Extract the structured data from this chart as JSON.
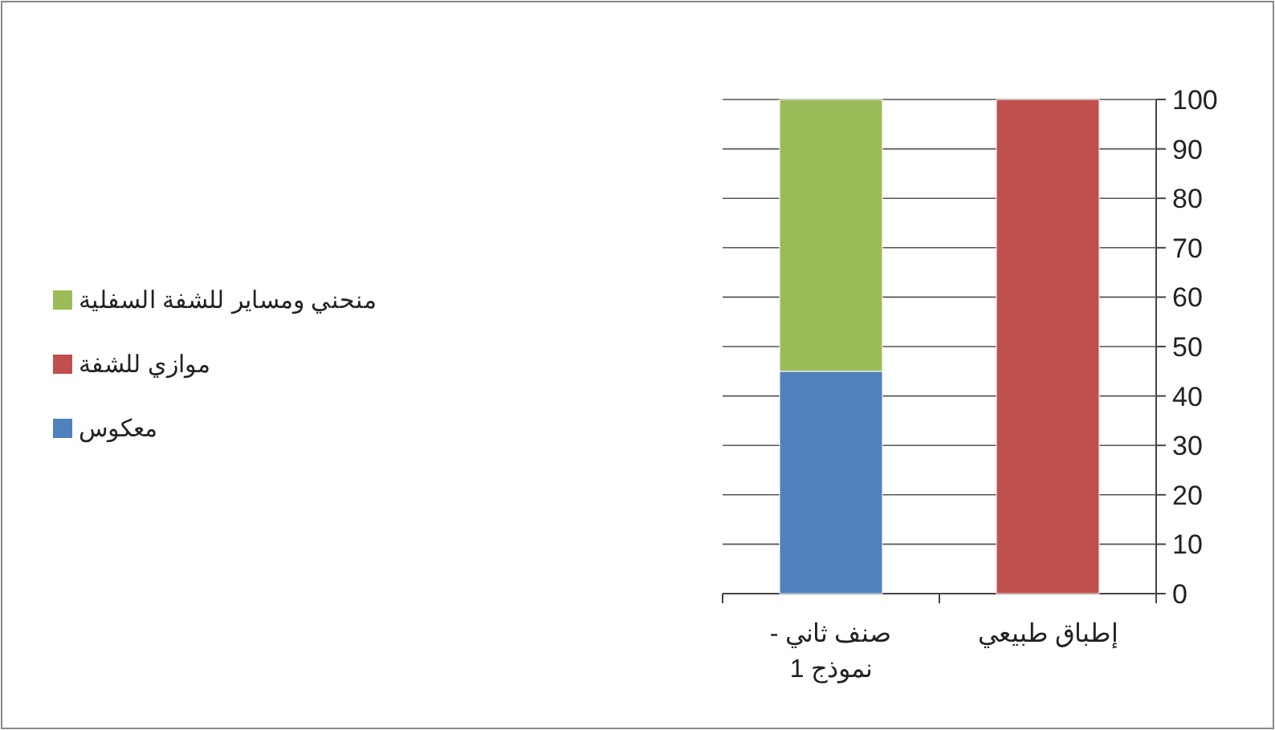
{
  "chart_data": {
    "type": "bar",
    "stacked": true,
    "categories": [
      "صنف ثاني - نموذج 1",
      "إطباق طبيعي"
    ],
    "series": [
      {
        "name": "معكوس",
        "color": "#4f81bd",
        "values": [
          45,
          0
        ]
      },
      {
        "name": "موازي للشفة",
        "color": "#c0504d",
        "values": [
          0,
          100
        ]
      },
      {
        "name": "منحني ومساير للشفة السفلية",
        "color": "#9bbb59",
        "values": [
          55,
          0
        ]
      }
    ],
    "ylim": [
      0,
      100
    ],
    "yticks": [
      0,
      10,
      20,
      30,
      40,
      50,
      60,
      70,
      80,
      90,
      100
    ],
    "grid": "y",
    "legend": "left"
  }
}
